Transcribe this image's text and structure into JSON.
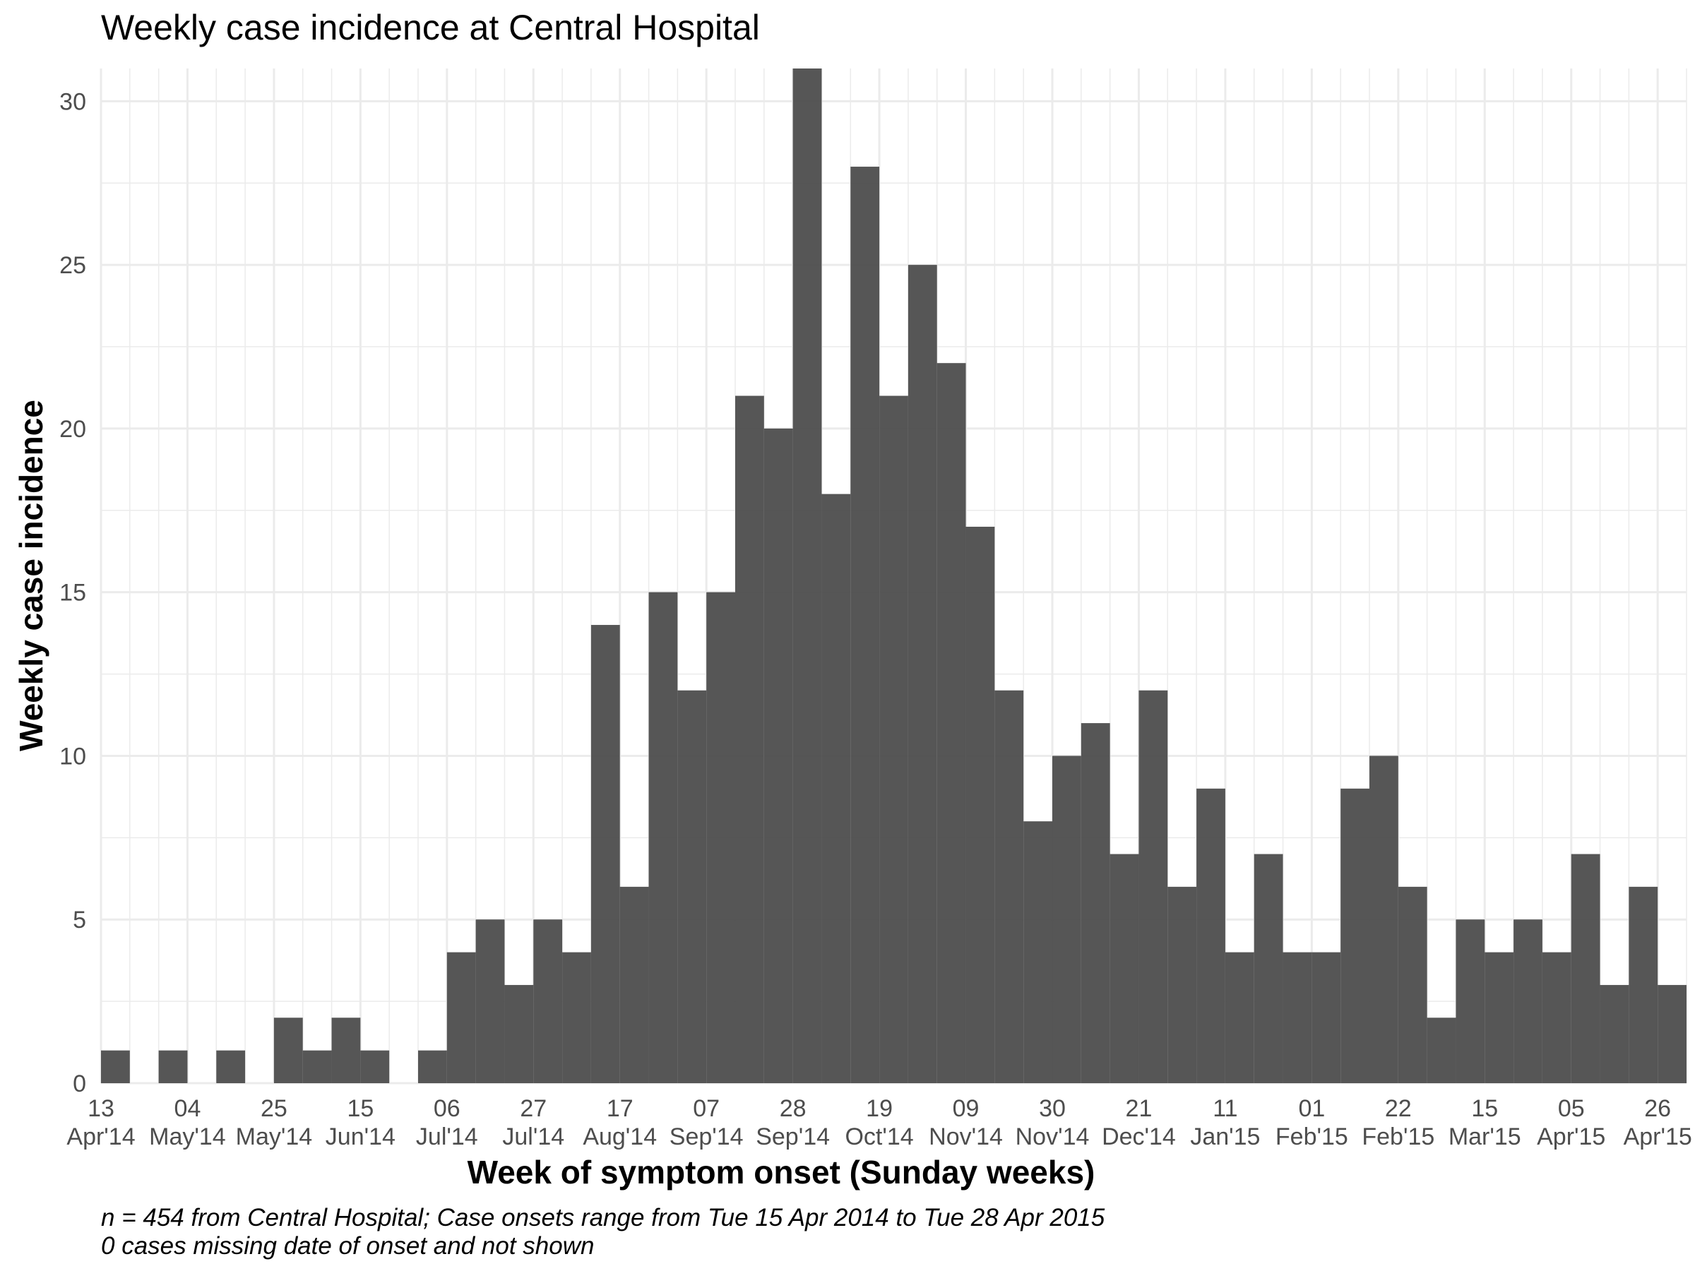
{
  "chart_data": {
    "type": "bar",
    "title": "Weekly case incidence at Central Hospital",
    "xlabel": "Week of symptom onset (Sunday weeks)",
    "ylabel": "Weekly case incidence",
    "ylim": [
      0,
      31
    ],
    "y_ticks": [
      "0",
      "5",
      "10",
      "15",
      "20",
      "25",
      "30"
    ],
    "x_tick_labels": [
      {
        "day": "13",
        "month": "Apr'14"
      },
      {
        "day": "04",
        "month": "May'14"
      },
      {
        "day": "25",
        "month": "May'14"
      },
      {
        "day": "15",
        "month": "Jun'14"
      },
      {
        "day": "06",
        "month": "Jul'14"
      },
      {
        "day": "27",
        "month": "Jul'14"
      },
      {
        "day": "17",
        "month": "Aug'14"
      },
      {
        "day": "07",
        "month": "Sep'14"
      },
      {
        "day": "28",
        "month": "Sep'14"
      },
      {
        "day": "19",
        "month": "Oct'14"
      },
      {
        "day": "09",
        "month": "Nov'14"
      },
      {
        "day": "30",
        "month": "Nov'14"
      },
      {
        "day": "21",
        "month": "Dec'14"
      },
      {
        "day": "11",
        "month": "Jan'15"
      },
      {
        "day": "01",
        "month": "Feb'15"
      },
      {
        "day": "22",
        "month": "Feb'15"
      },
      {
        "day": "15",
        "month": "Mar'15"
      },
      {
        "day": "05",
        "month": "Apr'15"
      },
      {
        "day": "26",
        "month": "Apr'15"
      }
    ],
    "categories": [
      "2014-04-13",
      "2014-04-20",
      "2014-04-27",
      "2014-05-04",
      "2014-05-11",
      "2014-05-18",
      "2014-05-25",
      "2014-06-01",
      "2014-06-08",
      "2014-06-15",
      "2014-06-22",
      "2014-06-29",
      "2014-07-06",
      "2014-07-13",
      "2014-07-20",
      "2014-07-27",
      "2014-08-03",
      "2014-08-10",
      "2014-08-17",
      "2014-08-24",
      "2014-08-31",
      "2014-09-07",
      "2014-09-14",
      "2014-09-21",
      "2014-09-28",
      "2014-10-05",
      "2014-10-12",
      "2014-10-19",
      "2014-10-26",
      "2014-11-02",
      "2014-11-09",
      "2014-11-16",
      "2014-11-23",
      "2014-11-30",
      "2014-12-07",
      "2014-12-14",
      "2014-12-21",
      "2014-12-28",
      "2015-01-04",
      "2015-01-11",
      "2015-01-18",
      "2015-01-25",
      "2015-02-01",
      "2015-02-08",
      "2015-02-15",
      "2015-02-22",
      "2015-03-01",
      "2015-03-08",
      "2015-03-15",
      "2015-03-22",
      "2015-03-29",
      "2015-04-05",
      "2015-04-12",
      "2015-04-19",
      "2015-04-26"
    ],
    "values": [
      1,
      0,
      1,
      0,
      1,
      0,
      2,
      1,
      2,
      1,
      0,
      1,
      4,
      5,
      3,
      5,
      4,
      14,
      6,
      15,
      12,
      15,
      21,
      20,
      31,
      18,
      28,
      21,
      25,
      22,
      17,
      12,
      8,
      10,
      11,
      7,
      12,
      6,
      9,
      4,
      7,
      4,
      4,
      9,
      10,
      6,
      2,
      5,
      4,
      5,
      4,
      7,
      3,
      6,
      3
    ],
    "bar_color": "#4d4d4d",
    "grid": true,
    "legend": "none",
    "caption": [
      "n = 454 from Central Hospital; Case onsets range from Tue 15 Apr 2014 to Tue 28 Apr 2015",
      "0 cases missing date of onset and not shown"
    ]
  }
}
